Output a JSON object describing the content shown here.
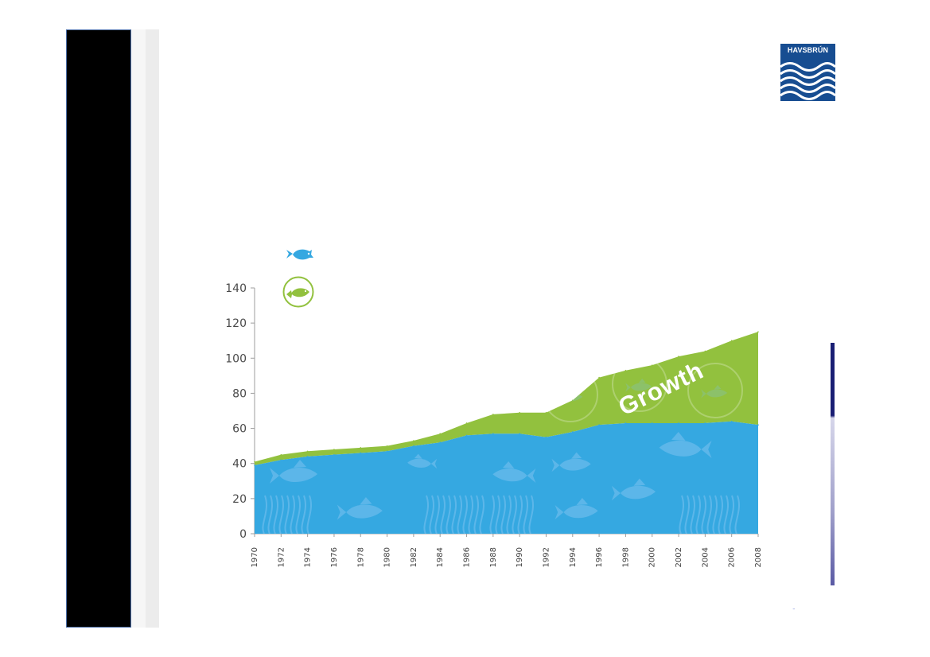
{
  "logo": {
    "text": "HAVSBRÚN"
  },
  "legend": {
    "wild_icon": "blue-fish-icon",
    "farmed_icon": "green-farmed-fish-icon",
    "wild_color": "#35a8e1",
    "farmed_color": "#92c13e"
  },
  "chart_data": {
    "type": "area",
    "title": "",
    "xlabel": "",
    "ylabel": "",
    "x": [
      "1970",
      "1972",
      "1974",
      "1976",
      "1978",
      "1980",
      "1982",
      "1984",
      "1986",
      "1988",
      "1990",
      "1992",
      "1994",
      "1996",
      "1998",
      "2000",
      "2002",
      "2004",
      "2006",
      "2008"
    ],
    "series": [
      {
        "values": [
          39,
          42,
          44,
          45,
          46,
          47,
          50,
          52,
          56,
          57,
          57,
          55,
          58,
          62,
          63,
          63,
          63,
          63,
          64,
          62
        ],
        "color": "#35a8e1"
      },
      {
        "values": [
          41,
          45,
          47,
          48,
          49,
          50,
          53,
          57,
          63,
          68,
          69,
          69,
          76,
          89,
          93,
          96,
          101,
          104,
          110,
          115
        ],
        "color": "#92c13e"
      }
    ],
    "yticks": [
      0,
      20,
      40,
      60,
      80,
      100,
      120,
      140
    ],
    "ylim": [
      0,
      140
    ],
    "grid": false,
    "annotations": [
      {
        "text": "Growth"
      }
    ]
  },
  "footer": {
    "mark": "™"
  }
}
